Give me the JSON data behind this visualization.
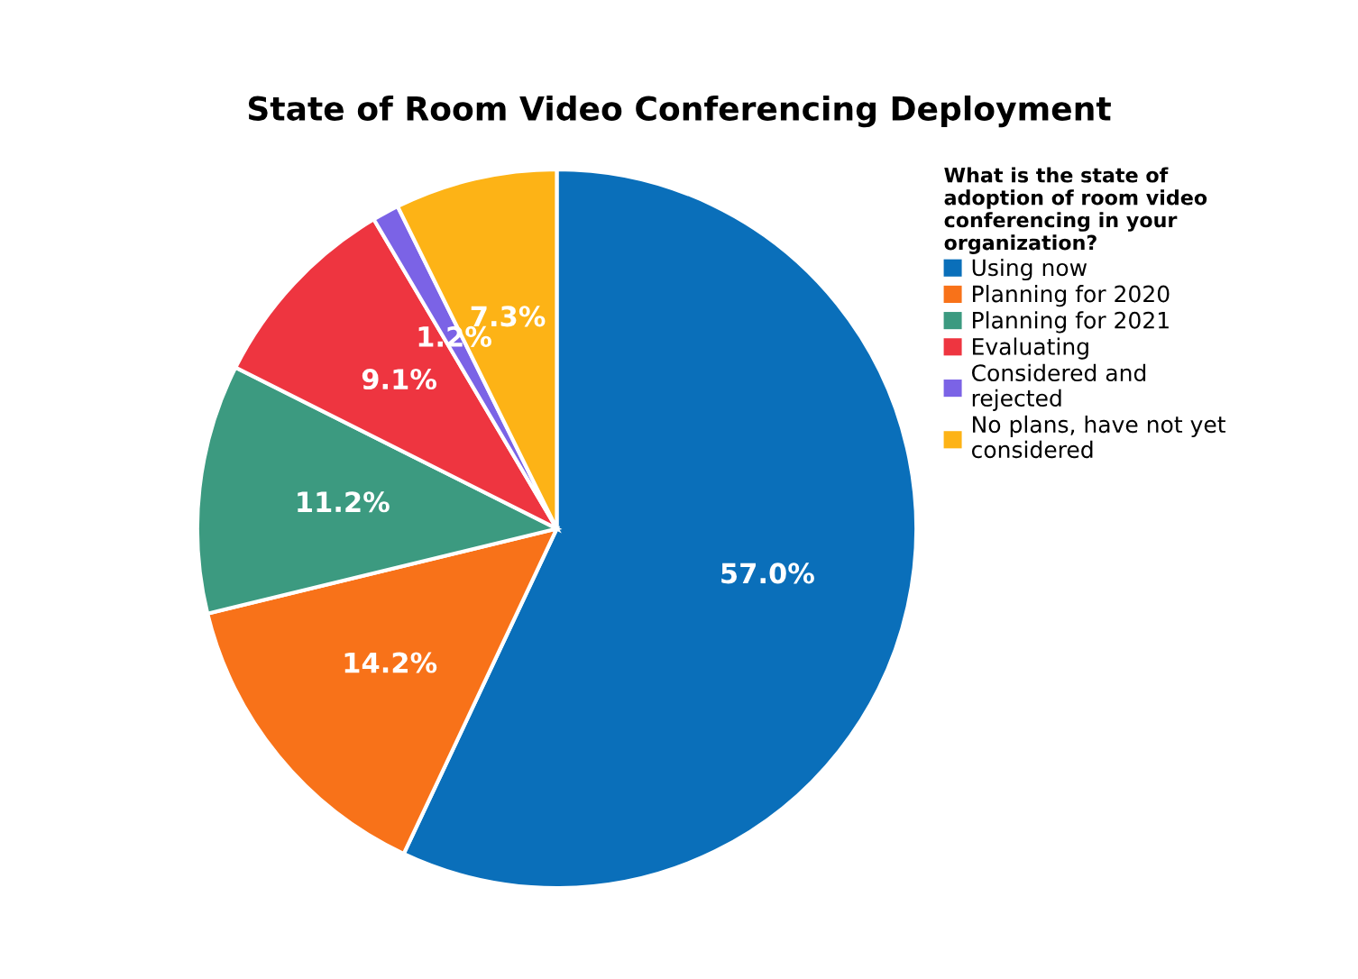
{
  "chart_data": {
    "type": "pie",
    "title": "State of Room Video Conferencing Deployment",
    "legend_title": "What is the state of\nadoption of room video\nconferencing in your\norganization?",
    "categories": [
      "Using now",
      "Planning for 2020",
      "Planning for 2021",
      "Evaluating",
      "Considered and\nrejected",
      "No plans, have not yet\nconsidered"
    ],
    "values": [
      57.0,
      14.2,
      11.2,
      9.1,
      1.2,
      7.3
    ],
    "colors": [
      "#0a6fba",
      "#f87219",
      "#3c9a80",
      "#ee3540",
      "#7b63e6",
      "#fdb316"
    ],
    "value_labels": [
      "57.0%",
      "14.2%",
      "11.2%",
      "9.1%",
      "1.2%",
      "7.3%"
    ],
    "legend": "right"
  }
}
